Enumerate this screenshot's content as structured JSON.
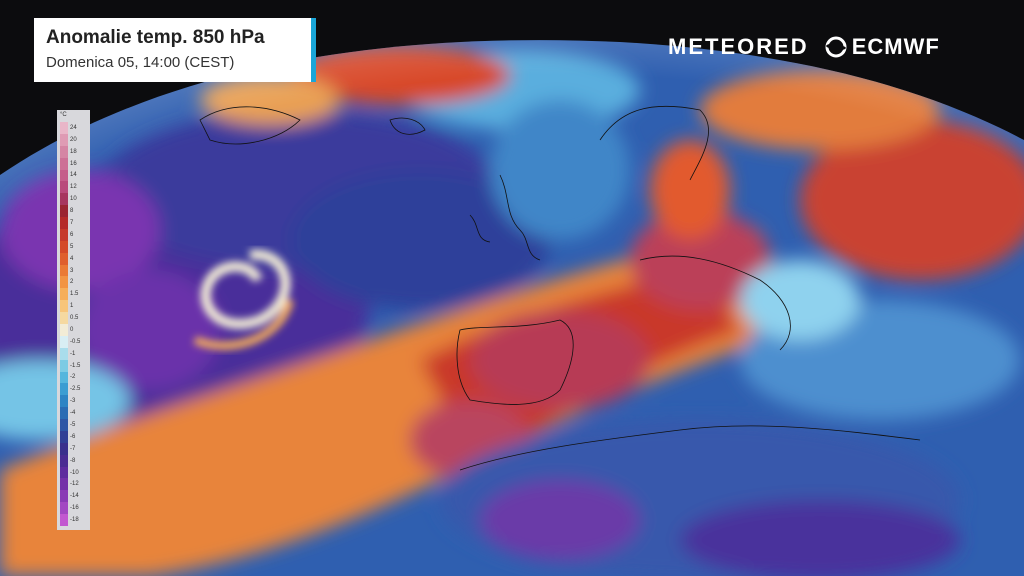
{
  "title": "Anomalie temp. 850 hPa",
  "subtitle": "Domenica 05, 14:00 (CEST)",
  "brand": {
    "meteored": "METEORED",
    "ecmwf": "ECMWF"
  },
  "legend": {
    "unit": "°C",
    "ticks": [
      "24",
      "20",
      "18",
      "16",
      "14",
      "12",
      "10",
      "8",
      "7",
      "6",
      "5",
      "4",
      "3",
      "2",
      "1.5",
      "1",
      "0.5",
      "0",
      "-0.5",
      "-1",
      "-1.5",
      "-2",
      "-2.5",
      "-3",
      "-4",
      "-5",
      "-6",
      "-7",
      "-8",
      "-10",
      "-12",
      "-14",
      "-16",
      "-18"
    ],
    "colors": [
      "#e9b6c8",
      "#df9bb4",
      "#d585a4",
      "#cd7096",
      "#c55d8a",
      "#b94a7b",
      "#a7365f",
      "#9b2532",
      "#b52b2a",
      "#c63a2b",
      "#d44a2a",
      "#df5f2e",
      "#ea7a36",
      "#f29444",
      "#f6ae5a",
      "#f7c57a",
      "#f5d9a0",
      "#f2ecd6",
      "#d8eef4",
      "#a9ddec",
      "#7ccbe4",
      "#55b6dd",
      "#3b9dd2",
      "#2d84c4",
      "#2a6cb4",
      "#2d56a5",
      "#313f95",
      "#3a2f8c",
      "#4a2b92",
      "#5e2b9e",
      "#7430a8",
      "#8a3bb5",
      "#a248c2",
      "#c258d0"
    ]
  }
}
